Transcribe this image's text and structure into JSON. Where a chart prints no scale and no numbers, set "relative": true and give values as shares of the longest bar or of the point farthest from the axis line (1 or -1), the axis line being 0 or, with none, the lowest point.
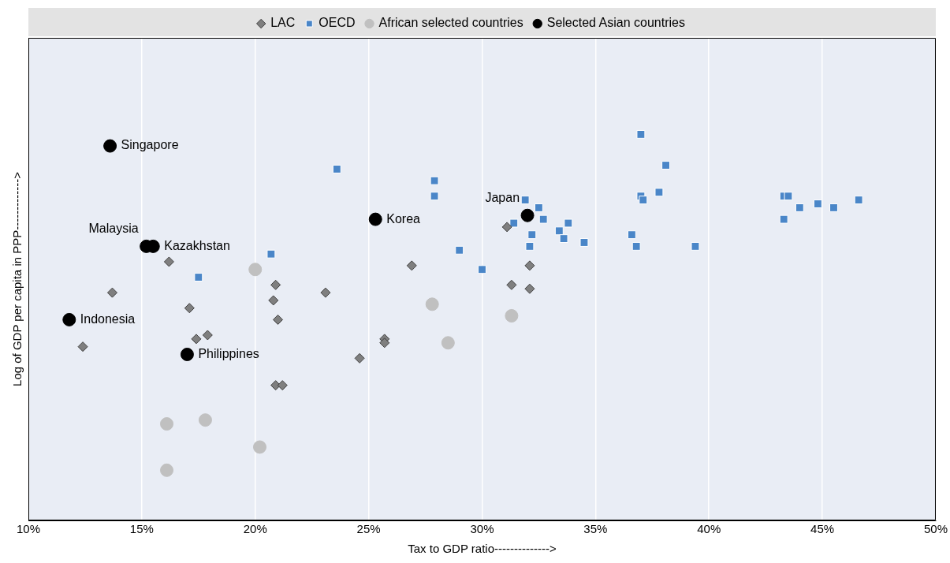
{
  "chart_data": {
    "type": "scatter",
    "relative": true,
    "xlabel": "Tax to GDP ratio-------------->",
    "ylabel": "Log of GDP per capita in PPP------------->",
    "xlim": [
      10,
      50
    ],
    "xticks": [
      {
        "value": 10,
        "label": "10%"
      },
      {
        "value": 15,
        "label": "15%"
      },
      {
        "value": 20,
        "label": "20%"
      },
      {
        "value": 25,
        "label": "25%"
      },
      {
        "value": 30,
        "label": "30%"
      },
      {
        "value": 35,
        "label": "35%"
      },
      {
        "value": 40,
        "label": "40%"
      },
      {
        "value": 45,
        "label": "45%"
      },
      {
        "value": 50,
        "label": "50%"
      }
    ],
    "grid": "x",
    "legend": "top",
    "series": [
      {
        "name": "LAC",
        "color": "#7f7f7f",
        "marker": "diamond",
        "x": [
          16.2,
          13.7,
          17.1,
          12.4,
          17.4,
          17.9,
          20.9,
          20.8,
          21.0,
          23.1,
          26.9,
          25.7,
          25.7,
          24.6,
          20.9,
          21.2,
          31.1,
          32.1,
          31.3,
          32.1
        ],
        "values": [
          0.67,
          0.59,
          0.55,
          0.45,
          0.47,
          0.48,
          0.61,
          0.57,
          0.52,
          0.59,
          0.66,
          0.47,
          0.46,
          0.42,
          0.35,
          0.35,
          0.76,
          0.66,
          0.61,
          0.6
        ]
      },
      {
        "name": "OECD",
        "color": "#4a86c8",
        "marker": "square",
        "x": [
          37.0,
          38.1,
          23.6,
          27.9,
          27.9,
          31.9,
          32.5,
          31.4,
          32.7,
          33.8,
          33.4,
          32.2,
          33.6,
          32.1,
          34.5,
          36.6,
          36.8,
          39.4,
          37.0,
          37.1,
          37.8,
          43.3,
          43.5,
          44.0,
          44.8,
          45.5,
          46.6,
          43.3,
          29.0,
          30.0,
          20.7,
          17.5
        ],
        "values": [
          1.0,
          0.92,
          0.91,
          0.88,
          0.84,
          0.83,
          0.81,
          0.77,
          0.78,
          0.77,
          0.75,
          0.74,
          0.73,
          0.71,
          0.72,
          0.74,
          0.71,
          0.71,
          0.84,
          0.83,
          0.85,
          0.84,
          0.84,
          0.81,
          0.82,
          0.81,
          0.83,
          0.78,
          0.7,
          0.65,
          0.69,
          0.63
        ]
      },
      {
        "name": "African selected countries",
        "color": "#c0c0c0",
        "marker": "circle",
        "x": [
          20.0,
          27.8,
          31.3,
          28.5,
          16.1,
          17.8,
          20.2,
          16.1
        ],
        "values": [
          0.65,
          0.56,
          0.53,
          0.46,
          0.25,
          0.26,
          0.19,
          0.13
        ]
      },
      {
        "name": "Selected Asian countries",
        "color": "#000000",
        "marker": "circle",
        "x": [
          13.6,
          25.3,
          32.0,
          15.2,
          15.5,
          11.8,
          17.0
        ],
        "values": [
          0.97,
          0.78,
          0.79,
          0.71,
          0.71,
          0.52,
          0.43
        ]
      }
    ],
    "annotations": [
      {
        "text": "Singapore",
        "x": 13.6,
        "y": 0.97
      },
      {
        "text": "Korea",
        "x": 25.3,
        "y": 0.78
      },
      {
        "text": "Japan",
        "x": 32.0,
        "y": 0.79
      },
      {
        "text": "Kazakhstan",
        "x": 15.5,
        "y": 0.71
      },
      {
        "text": "Malaysia",
        "x": 15.2,
        "y": 0.71
      },
      {
        "text": "Indonesia",
        "x": 11.8,
        "y": 0.52
      },
      {
        "text": "Philippines",
        "x": 17.0,
        "y": 0.43
      }
    ]
  }
}
